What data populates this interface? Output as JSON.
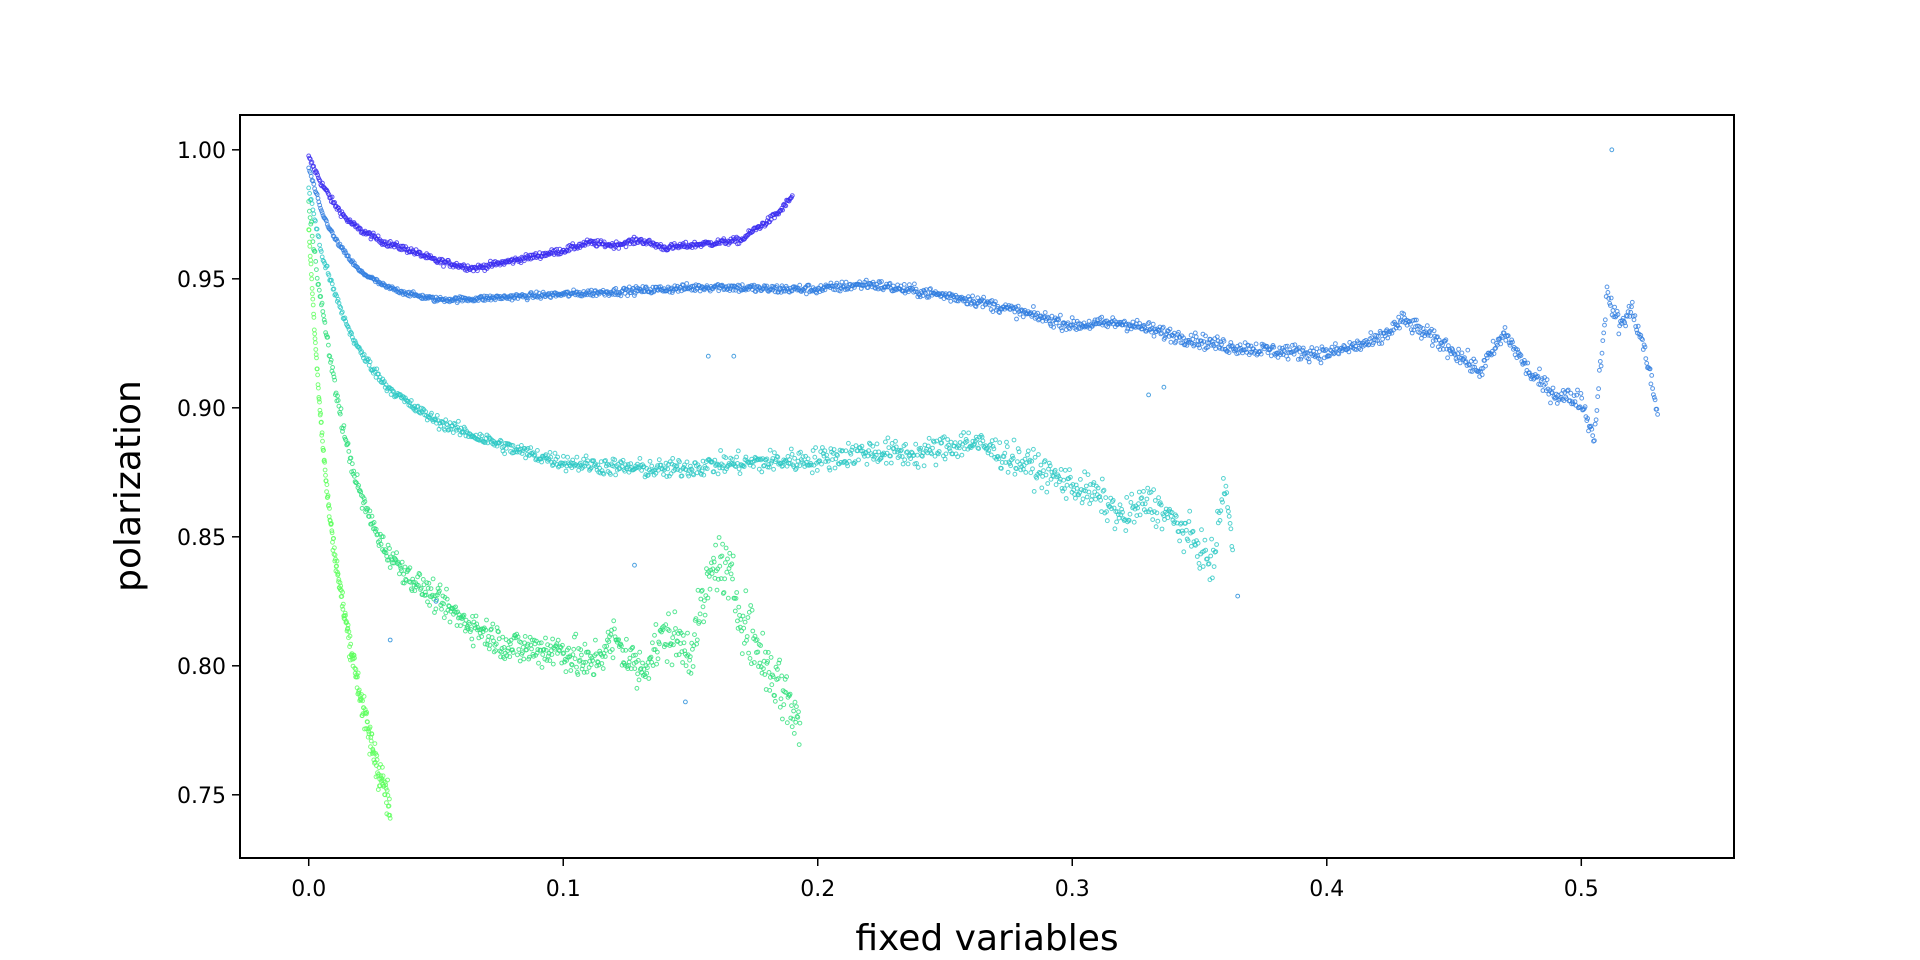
{
  "chart_data": {
    "type": "scatter",
    "title": "",
    "xlabel": "fixed variables",
    "ylabel": "polarization",
    "xlim": [
      -0.027,
      0.56
    ],
    "ylim": [
      0.7255,
      1.0135
    ],
    "xticks": [
      "0.0",
      "0.1",
      "0.2",
      "0.3",
      "0.4",
      "0.5"
    ],
    "xtick_values": [
      0.0,
      0.1,
      0.2,
      0.3,
      0.4,
      0.5
    ],
    "yticks": [
      "0.75",
      "0.80",
      "0.85",
      "0.90",
      "0.95",
      "1.00"
    ],
    "ytick_values": [
      0.75,
      0.8,
      0.85,
      0.9,
      0.95,
      1.0
    ],
    "grid": false,
    "legend": "none",
    "marker": "small hollow circles",
    "series": [
      {
        "color": "#3a2cf0",
        "x": [
          0.0,
          0.005,
          0.01,
          0.015,
          0.02,
          0.03,
          0.04,
          0.05,
          0.06,
          0.065,
          0.07,
          0.08,
          0.09,
          0.1,
          0.11,
          0.12,
          0.13,
          0.14,
          0.15,
          0.16,
          0.17,
          0.175,
          0.18,
          0.185,
          0.19
        ],
        "y": [
          0.997,
          0.987,
          0.979,
          0.973,
          0.969,
          0.964,
          0.961,
          0.957,
          0.955,
          0.954,
          0.955,
          0.957,
          0.959,
          0.961,
          0.964,
          0.963,
          0.965,
          0.962,
          0.963,
          0.964,
          0.965,
          0.969,
          0.972,
          0.976,
          0.982
        ]
      },
      {
        "color": "#2f7de0",
        "x": [
          0.0,
          0.005,
          0.01,
          0.015,
          0.02,
          0.03,
          0.04,
          0.05,
          0.06,
          0.08,
          0.1,
          0.12,
          0.14,
          0.16,
          0.18,
          0.2,
          0.22,
          0.24,
          0.26,
          0.28,
          0.3,
          0.32,
          0.34,
          0.36,
          0.38,
          0.4,
          0.42,
          0.43,
          0.44,
          0.45,
          0.46,
          0.47,
          0.48,
          0.49,
          0.5,
          0.505,
          0.51,
          0.515,
          0.52,
          0.525,
          0.53
        ],
        "y": [
          0.993,
          0.976,
          0.966,
          0.959,
          0.953,
          0.947,
          0.944,
          0.942,
          0.942,
          0.943,
          0.944,
          0.945,
          0.946,
          0.947,
          0.946,
          0.946,
          0.948,
          0.945,
          0.942,
          0.937,
          0.932,
          0.933,
          0.928,
          0.924,
          0.922,
          0.921,
          0.926,
          0.934,
          0.928,
          0.922,
          0.914,
          0.929,
          0.913,
          0.905,
          0.903,
          0.888,
          0.944,
          0.932,
          0.938,
          0.922,
          0.898
        ]
      },
      {
        "color": "#2cc8c4",
        "x": [
          0.0,
          0.005,
          0.01,
          0.015,
          0.02,
          0.03,
          0.04,
          0.05,
          0.06,
          0.08,
          0.1,
          0.12,
          0.14,
          0.16,
          0.18,
          0.2,
          0.22,
          0.24,
          0.26,
          0.28,
          0.3,
          0.31,
          0.32,
          0.33,
          0.34,
          0.35,
          0.355,
          0.36,
          0.363
        ],
        "y": [
          0.985,
          0.96,
          0.945,
          0.932,
          0.922,
          0.909,
          0.901,
          0.895,
          0.891,
          0.884,
          0.879,
          0.877,
          0.876,
          0.878,
          0.879,
          0.88,
          0.883,
          0.882,
          0.887,
          0.879,
          0.87,
          0.866,
          0.857,
          0.864,
          0.856,
          0.846,
          0.838,
          0.872,
          0.845
        ]
      },
      {
        "color": "#2ee07a",
        "x": [
          0.0,
          0.005,
          0.01,
          0.015,
          0.02,
          0.025,
          0.03,
          0.04,
          0.05,
          0.06,
          0.08,
          0.1,
          0.11,
          0.12,
          0.13,
          0.14,
          0.15,
          0.16,
          0.165,
          0.17,
          0.175,
          0.18,
          0.185,
          0.19,
          0.193
        ],
        "y": [
          0.978,
          0.94,
          0.91,
          0.885,
          0.867,
          0.855,
          0.845,
          0.834,
          0.826,
          0.818,
          0.807,
          0.806,
          0.8,
          0.81,
          0.798,
          0.812,
          0.806,
          0.841,
          0.835,
          0.82,
          0.809,
          0.8,
          0.793,
          0.784,
          0.776
        ]
      },
      {
        "color": "#5cff5c",
        "x": [
          0.0,
          0.002,
          0.004,
          0.006,
          0.008,
          0.01,
          0.012,
          0.014,
          0.016,
          0.018,
          0.02,
          0.022,
          0.024,
          0.026,
          0.028,
          0.03,
          0.032
        ],
        "y": [
          0.97,
          0.935,
          0.905,
          0.88,
          0.86,
          0.845,
          0.832,
          0.82,
          0.81,
          0.8,
          0.79,
          0.78,
          0.772,
          0.765,
          0.758,
          0.752,
          0.742
        ]
      }
    ],
    "outliers": {
      "x": [
        0.512,
        0.157,
        0.167,
        0.33,
        0.336,
        0.365,
        0.032,
        0.05,
        0.128,
        0.148
      ],
      "y": [
        1.0,
        0.92,
        0.92,
        0.905,
        0.908,
        0.827,
        0.81,
        0.825,
        0.839,
        0.786
      ]
    }
  }
}
